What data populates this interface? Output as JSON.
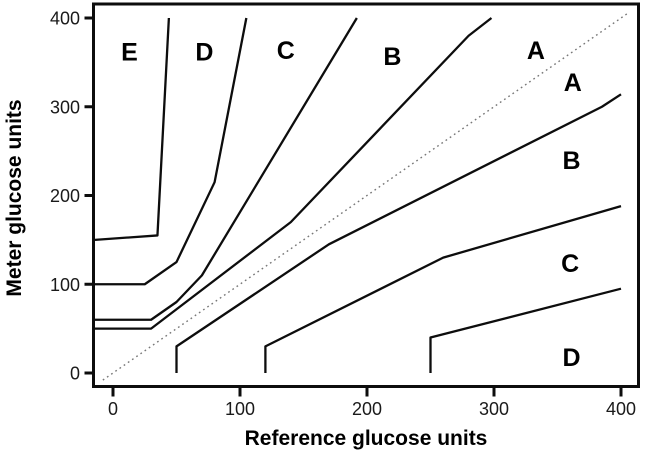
{
  "figure": {
    "xlabel": "Reference glucose units",
    "ylabel": "Meter glucose units"
  },
  "chart_data": {
    "type": "line",
    "title": "",
    "xlabel": "Reference glucose units",
    "ylabel": "Meter glucose units",
    "xlim": [
      0,
      400
    ],
    "ylim": [
      0,
      400
    ],
    "x_ticks": [
      0,
      100,
      200,
      300,
      400
    ],
    "y_ticks": [
      0,
      100,
      200,
      300,
      400
    ],
    "grid": false,
    "legend": false,
    "identity_line": {
      "style": "dotted",
      "points": [
        [
          -8,
          -8
        ],
        [
          405,
          405
        ]
      ]
    },
    "series": [
      {
        "name": "E-D-boundary-upper",
        "points": [
          [
            0,
            150
          ],
          [
            35,
            155
          ],
          [
            44,
            400
          ]
        ]
      },
      {
        "name": "D-C-boundary-upper",
        "points": [
          [
            0,
            100
          ],
          [
            25,
            100
          ],
          [
            50,
            125
          ],
          [
            80,
            215
          ],
          [
            105,
            400
          ]
        ]
      },
      {
        "name": "C-B-boundary-upper",
        "points": [
          [
            0,
            60
          ],
          [
            30,
            60
          ],
          [
            50,
            80
          ],
          [
            70,
            110
          ],
          [
            192,
            400
          ]
        ]
      },
      {
        "name": "B-A-boundary-upper",
        "points": [
          [
            0,
            50
          ],
          [
            30,
            50
          ],
          [
            140,
            170
          ],
          [
            280,
            380
          ],
          [
            298,
            400
          ]
        ]
      },
      {
        "name": "A-B-boundary-lower",
        "points": [
          [
            50,
            0
          ],
          [
            50,
            30
          ],
          [
            170,
            145
          ],
          [
            385,
            300
          ],
          [
            400,
            314
          ]
        ]
      },
      {
        "name": "B-C-boundary-lower",
        "points": [
          [
            120,
            0
          ],
          [
            120,
            30
          ],
          [
            260,
            130
          ],
          [
            400,
            188
          ]
        ]
      },
      {
        "name": "C-D-boundary-lower",
        "points": [
          [
            250,
            0
          ],
          [
            250,
            40
          ],
          [
            400,
            95
          ]
        ]
      }
    ],
    "zone_labels": [
      {
        "text": "E",
        "x": 13,
        "y": 362
      },
      {
        "text": "D",
        "x": 72,
        "y": 362
      },
      {
        "text": "C",
        "x": 136,
        "y": 364
      },
      {
        "text": "B",
        "x": 220,
        "y": 357
      },
      {
        "text": "A",
        "x": 333,
        "y": 364
      },
      {
        "text": "A",
        "x": 362,
        "y": 328
      },
      {
        "text": "B",
        "x": 361,
        "y": 240
      },
      {
        "text": "C",
        "x": 360,
        "y": 124
      },
      {
        "text": "D",
        "x": 361,
        "y": 18
      }
    ],
    "colors": {
      "boundary_line": "#0d0d0d",
      "identity_line": "#777777",
      "frame": "#0d0d0d",
      "text": "#000000",
      "background": "#ffffff"
    }
  }
}
